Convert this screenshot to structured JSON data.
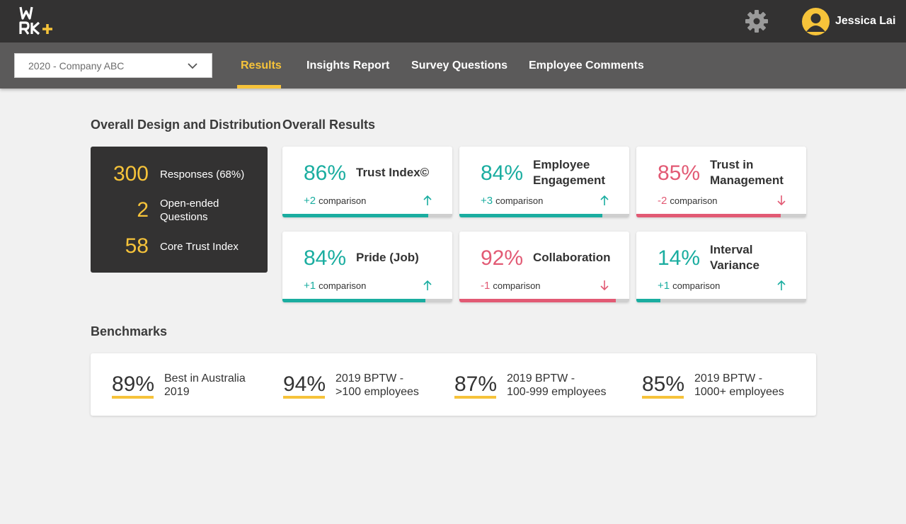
{
  "header": {
    "logo_icon": "wrk-plus-logo",
    "settings_icon": "gear-icon",
    "user": {
      "name": "Jessica Lai",
      "avatar_icon": "user-avatar-icon"
    }
  },
  "subnav": {
    "survey_select": {
      "value": "2020 - Company ABC"
    },
    "tabs": [
      {
        "label": "Results",
        "active": true
      },
      {
        "label": "Insights Report",
        "active": false
      },
      {
        "label": "Survey Questions",
        "active": false
      },
      {
        "label": "Employee Comments",
        "active": false
      }
    ]
  },
  "distribution": {
    "heading": "Overall Design and Distribution",
    "rows": [
      {
        "value": "300",
        "label": "Responses (68%)"
      },
      {
        "value": "2",
        "label": "Open-ended Questions"
      },
      {
        "value": "58",
        "label": "Core Trust Index"
      }
    ]
  },
  "results": {
    "heading": "Overall Results",
    "cards": [
      {
        "pct": "86%",
        "name": "Trust Index©",
        "delta": "+2",
        "comparison": "comparison",
        "trend": "up",
        "progress": 0.86
      },
      {
        "pct": "84%",
        "name": "Employee Engagement",
        "delta": "+3",
        "comparison": "comparison",
        "trend": "up",
        "progress": 0.84
      },
      {
        "pct": "85%",
        "name": "Trust in Management",
        "delta": "-2",
        "comparison": "comparison",
        "trend": "down",
        "progress": 0.85
      },
      {
        "pct": "84%",
        "name": "Pride (Job)",
        "delta": "+1",
        "comparison": "comparison",
        "trend": "up",
        "progress": 0.84
      },
      {
        "pct": "92%",
        "name": "Collaboration",
        "delta": "-1",
        "comparison": "comparison",
        "trend": "down",
        "progress": 0.92
      },
      {
        "pct": "14%",
        "name": "Interval Variance",
        "delta": "+1",
        "comparison": "comparison",
        "trend": "up",
        "progress": 0.14
      }
    ]
  },
  "benchmarks": {
    "heading": "Benchmarks",
    "items": [
      {
        "value": "89%",
        "line1": "Best in Australia",
        "line2": "2019"
      },
      {
        "value": "94%",
        "line1": "2019 BPTW -",
        "line2": ">100 employees"
      },
      {
        "value": "87%",
        "line1": "2019 BPTW -",
        "line2": "100-999 employees"
      },
      {
        "value": "85%",
        "line1": "2019 BPTW -",
        "line2": "1000+ employees"
      }
    ]
  },
  "colors": {
    "accent": "#f6c33a",
    "positive": "#1aada0",
    "negative": "#e25a74",
    "topbar": "#333232",
    "subnav": "#5b5a5a"
  }
}
